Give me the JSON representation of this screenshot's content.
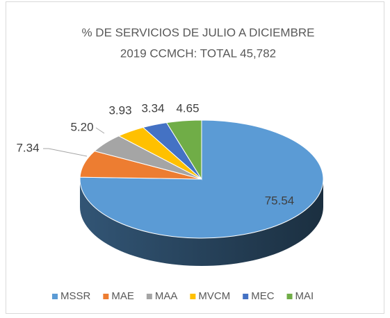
{
  "chart_data": {
    "type": "pie",
    "title": [
      "% DE SERVICIOS DE JULIO A  DICIEMBRE",
      "2019 CCMCH: TOTAL 45,782"
    ],
    "categories": [
      "MSSR",
      "MAE",
      "MAA",
      "MVCM",
      "MEC",
      "MAI"
    ],
    "values": [
      75.54,
      7.34,
      5.2,
      3.93,
      3.34,
      4.65
    ],
    "value_labels": [
      "75.54",
      "7.34",
      "5.20",
      "3.93",
      "3.34",
      "4.65"
    ],
    "colors": [
      "#5b9bd5",
      "#ed7d31",
      "#a5a5a5",
      "#ffc000",
      "#4472c4",
      "#70ad47"
    ],
    "legend": "bottom"
  }
}
